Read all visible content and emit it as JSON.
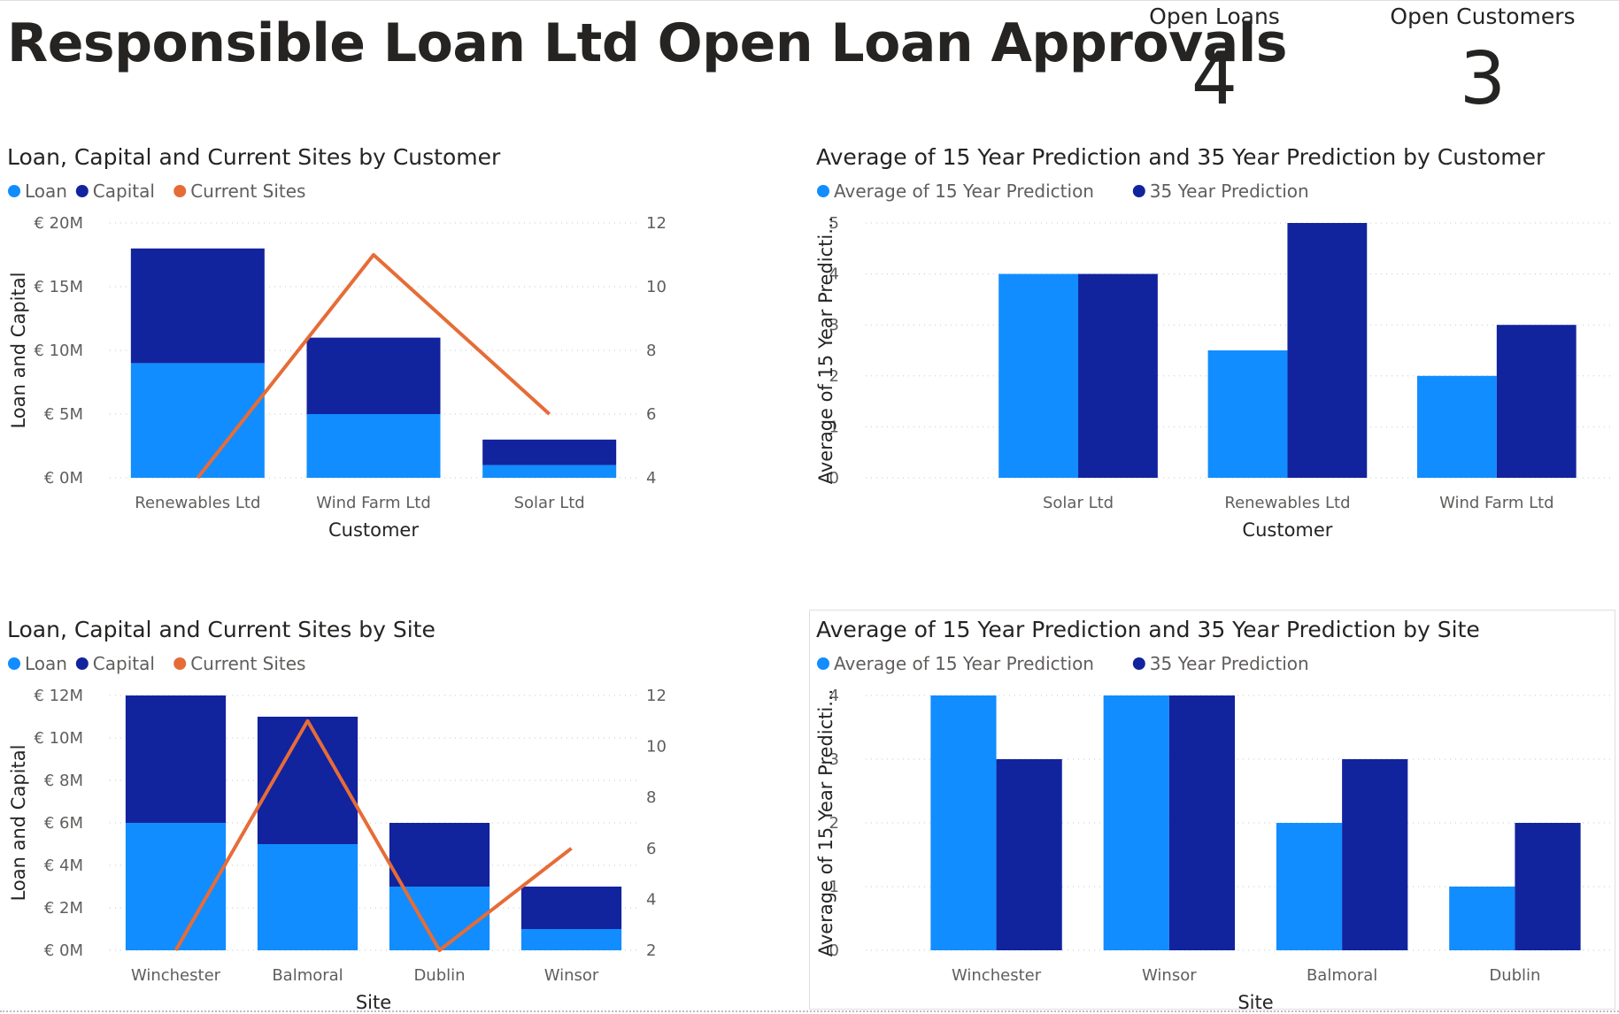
{
  "title": "Responsible Loan Ltd Open Loan Approvals",
  "cards": {
    "open_loans": {
      "label": "Open Loans",
      "value": "4"
    },
    "open_customers": {
      "label": "Open Customers",
      "value": "3"
    }
  },
  "colors": {
    "loan": "#118dff",
    "capital": "#12239e",
    "current_sites": "#e66c37"
  },
  "chart_data": [
    {
      "id": "combo-customer",
      "type": "bar",
      "subtype": "stacked column with line (secondary axis)",
      "title": "Loan, Capital and Current Sites by Customer",
      "xlabel": "Customer",
      "ylabel": "Loan and Capital",
      "categories": [
        "Renewables Ltd",
        "Wind Farm Ltd",
        "Solar Ltd"
      ],
      "series": [
        {
          "name": "Loan",
          "kind": "bar",
          "values": [
            9000000,
            5000000,
            1000000
          ]
        },
        {
          "name": "Capital",
          "kind": "bar",
          "values": [
            9000000,
            6000000,
            2000000
          ]
        },
        {
          "name": "Current Sites",
          "kind": "line",
          "axis": "secondary",
          "values": [
            4,
            11,
            6
          ]
        }
      ],
      "ylim": [
        0,
        20000000
      ],
      "y_ticks": [
        {
          "v": 0,
          "label": "€ 0M"
        },
        {
          "v": 5000000,
          "label": "€ 5M"
        },
        {
          "v": 10000000,
          "label": "€ 10M"
        },
        {
          "v": 15000000,
          "label": "€ 15M"
        },
        {
          "v": 20000000,
          "label": "€ 20M"
        }
      ],
      "y2lim": [
        4,
        12
      ],
      "y2_ticks": [
        4,
        6,
        8,
        10,
        12
      ],
      "legend": "top-left",
      "grid": true
    },
    {
      "id": "cluster-customer",
      "type": "bar",
      "subtype": "clustered column",
      "title": "Average of 15 Year Prediction and 35 Year Prediction by Customer",
      "xlabel": "Customer",
      "ylabel": "Average of 15 Year Predicti...",
      "categories": [
        "Solar Ltd",
        "Renewables Ltd",
        "Wind Farm Ltd"
      ],
      "series": [
        {
          "name": "Average of 15 Year Prediction",
          "values": [
            4,
            2.5,
            2
          ]
        },
        {
          "name": "35 Year Prediction",
          "values": [
            4,
            5,
            3
          ]
        }
      ],
      "ylim": [
        0,
        5
      ],
      "y_ticks": [
        {
          "v": 0,
          "label": "0"
        },
        {
          "v": 1,
          "label": "1"
        },
        {
          "v": 2,
          "label": "2"
        },
        {
          "v": 3,
          "label": "3"
        },
        {
          "v": 4,
          "label": "4"
        },
        {
          "v": 5,
          "label": "5"
        }
      ],
      "legend": "top-left",
      "grid": true
    },
    {
      "id": "combo-site",
      "type": "bar",
      "subtype": "stacked column with line (secondary axis)",
      "title": "Loan, Capital and Current Sites by Site",
      "xlabel": "Site",
      "ylabel": "Loan and Capital",
      "categories": [
        "Winchester",
        "Balmoral",
        "Dublin",
        "Winsor"
      ],
      "series": [
        {
          "name": "Loan",
          "kind": "bar",
          "values": [
            6000000,
            5000000,
            3000000,
            1000000
          ]
        },
        {
          "name": "Capital",
          "kind": "bar",
          "values": [
            6000000,
            6000000,
            3000000,
            2000000
          ]
        },
        {
          "name": "Current Sites",
          "kind": "line",
          "axis": "secondary",
          "values": [
            2,
            11,
            2,
            6
          ]
        }
      ],
      "ylim": [
        0,
        12000000
      ],
      "y_ticks": [
        {
          "v": 0,
          "label": "€ 0M"
        },
        {
          "v": 2000000,
          "label": "€ 2M"
        },
        {
          "v": 4000000,
          "label": "€ 4M"
        },
        {
          "v": 6000000,
          "label": "€ 6M"
        },
        {
          "v": 8000000,
          "label": "€ 8M"
        },
        {
          "v": 10000000,
          "label": "€ 10M"
        },
        {
          "v": 12000000,
          "label": "€ 12M"
        }
      ],
      "y2lim": [
        2,
        12
      ],
      "y2_ticks": [
        2,
        4,
        6,
        8,
        10,
        12
      ],
      "legend": "top-left",
      "grid": true
    },
    {
      "id": "cluster-site",
      "type": "bar",
      "subtype": "clustered column",
      "title": "Average of 15 Year Prediction and 35 Year Prediction by Site",
      "xlabel": "Site",
      "ylabel": "Average of 15 Year Predicti...",
      "categories": [
        "Winchester",
        "Winsor",
        "Balmoral",
        "Dublin"
      ],
      "series": [
        {
          "name": "Average of 15 Year Prediction",
          "values": [
            4,
            4,
            2,
            1
          ]
        },
        {
          "name": "35 Year Prediction",
          "values": [
            3,
            4,
            3,
            2
          ]
        }
      ],
      "ylim": [
        0,
        4
      ],
      "y_ticks": [
        {
          "v": 0,
          "label": "0"
        },
        {
          "v": 1,
          "label": "1"
        },
        {
          "v": 2,
          "label": "2"
        },
        {
          "v": 3,
          "label": "3"
        },
        {
          "v": 4,
          "label": "4"
        }
      ],
      "legend": "top-left",
      "grid": true
    }
  ]
}
